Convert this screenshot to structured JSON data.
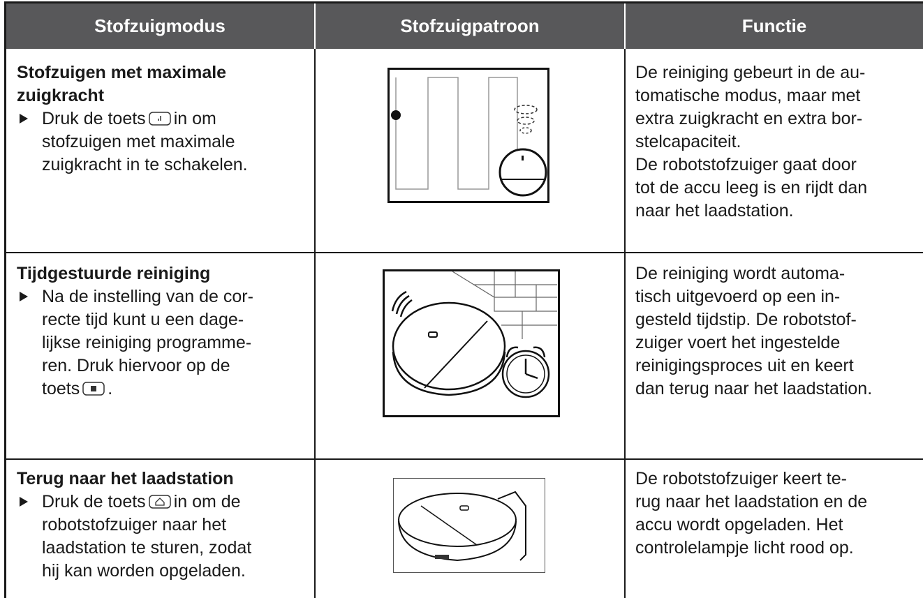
{
  "table": {
    "headers": [
      "Stofzuigmodus",
      "Stofzuigpatroon",
      "Functie"
    ],
    "rows": [
      {
        "title": [
          "Stofzuigen met maximale",
          "zuigkracht"
        ],
        "step_lines": [
          [
            "Druk de toets",
            "in om"
          ],
          "stofzuigen met maximale",
          "zuigkracht in te schakelen."
        ],
        "function": [
          "De reiniging gebeurt in de au-",
          "tomatische modus, maar met",
          "extra zuigkracht en extra bor-",
          "stelcapaciteit.",
          "De robotstofzuiger gaat door",
          "tot de accu leeg is en rijdt dan",
          "naar het laadstation."
        ]
      },
      {
        "title": [
          "Tijdgestuurde reiniging"
        ],
        "step_lines": [
          "Na de instelling van de cor-",
          "recte tijd kunt u een dage-",
          "lijkse reiniging programme-",
          "ren. Druk hiervoor op de",
          [
            "toets",
            "."
          ]
        ],
        "function": [
          "De reiniging wordt automa-",
          "tisch uitgevoerd op een in-",
          "gesteld tijdstip. De robotstof-",
          "zuiger voert het ingestelde",
          "reinigingsproces uit en keert",
          "dan terug naar het laadstation."
        ]
      },
      {
        "title": [
          "Terug naar het laadstation"
        ],
        "step_lines": [
          [
            "Druk de toets",
            "in om de"
          ],
          "robotstofzuiger naar het",
          "laadstation te sturen, zodat",
          "hij kan worden opgeladen."
        ],
        "function": [
          "De robotstofzuiger keert te-",
          "rug naar het laadstation en de",
          "accu wordt opgeladen. Het",
          "controlelampje licht rood op."
        ]
      }
    ]
  }
}
